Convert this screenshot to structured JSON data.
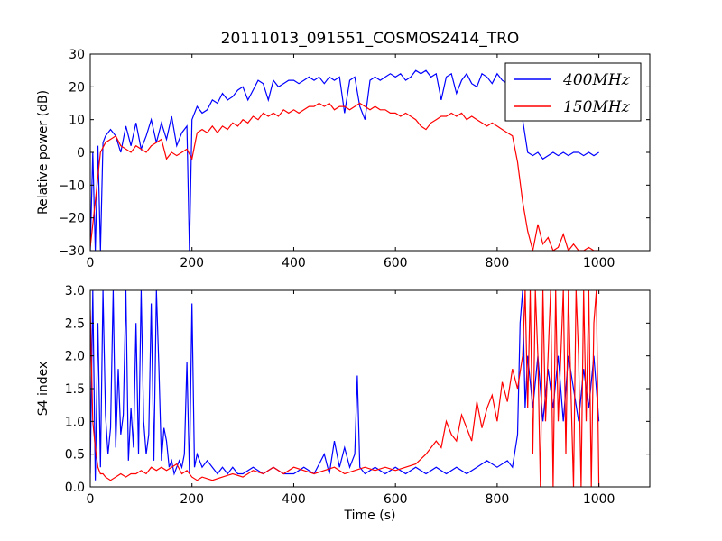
{
  "title": "20111013_091551_COSMOS2414_TRO",
  "colors": {
    "blue": "#0000ff",
    "red": "#ff0000"
  },
  "chart_data": [
    {
      "type": "line",
      "xlabel": "",
      "ylabel": "Relative power (dB)",
      "xlim": [
        0,
        1100
      ],
      "ylim": [
        -30,
        30
      ],
      "xticks": [
        0,
        200,
        400,
        600,
        800,
        1000
      ],
      "yticks": [
        -30,
        -20,
        -10,
        0,
        10,
        20,
        30
      ],
      "xtick_labels": [
        "0",
        "200",
        "400",
        "600",
        "800",
        "1000"
      ],
      "ytick_labels": [
        "−30",
        "−20",
        "−10",
        "0",
        "10",
        "20",
        "30"
      ],
      "legend": {
        "placement": "top-right",
        "entries": [
          "400MHz",
          "150MHz"
        ]
      },
      "series": [
        {
          "name": "400MHz",
          "color": "#0000ff",
          "x": [
            0,
            5,
            10,
            15,
            20,
            25,
            30,
            40,
            50,
            60,
            70,
            80,
            90,
            100,
            110,
            120,
            130,
            140,
            150,
            160,
            170,
            180,
            190,
            195,
            200,
            210,
            220,
            230,
            240,
            250,
            260,
            270,
            280,
            290,
            300,
            310,
            320,
            330,
            340,
            350,
            360,
            370,
            380,
            390,
            400,
            410,
            420,
            430,
            440,
            450,
            460,
            470,
            480,
            490,
            500,
            510,
            520,
            530,
            540,
            550,
            560,
            570,
            580,
            590,
            600,
            610,
            620,
            630,
            640,
            650,
            660,
            670,
            680,
            690,
            700,
            710,
            720,
            730,
            740,
            750,
            760,
            770,
            780,
            790,
            800,
            810,
            820,
            830,
            840,
            850,
            860,
            870,
            880,
            890,
            900,
            910,
            920,
            930,
            940,
            950,
            960,
            970,
            980,
            990,
            1000
          ],
          "y": [
            -30,
            0,
            -30,
            2,
            -30,
            3,
            5,
            7,
            5,
            0,
            8,
            2,
            9,
            1,
            5,
            10,
            3,
            9,
            4,
            11,
            2,
            6,
            8,
            -30,
            10,
            14,
            12,
            13,
            16,
            15,
            18,
            16,
            17,
            19,
            20,
            16,
            19,
            22,
            21,
            16,
            22,
            20,
            21,
            22,
            22,
            21,
            22,
            23,
            22,
            23,
            21,
            23,
            22,
            23,
            12,
            22,
            23,
            14,
            10,
            22,
            23,
            22,
            23,
            24,
            23,
            24,
            22,
            23,
            25,
            24,
            25,
            23,
            24,
            16,
            23,
            24,
            18,
            22,
            24,
            21,
            20,
            24,
            23,
            21,
            24,
            22,
            21,
            18,
            15,
            10,
            0,
            -1,
            0,
            -2,
            -1,
            0,
            -1,
            0,
            -1,
            0,
            0,
            -1,
            0,
            -1,
            0
          ]
        },
        {
          "name": "150MHz",
          "color": "#ff0000",
          "x": [
            0,
            10,
            20,
            30,
            40,
            50,
            60,
            70,
            80,
            90,
            100,
            110,
            120,
            130,
            140,
            150,
            160,
            170,
            180,
            190,
            200,
            210,
            220,
            230,
            240,
            250,
            260,
            270,
            280,
            290,
            300,
            310,
            320,
            330,
            340,
            350,
            360,
            370,
            380,
            390,
            400,
            410,
            420,
            430,
            440,
            450,
            460,
            470,
            480,
            490,
            500,
            510,
            520,
            530,
            540,
            550,
            560,
            570,
            580,
            590,
            600,
            610,
            620,
            630,
            640,
            650,
            660,
            670,
            680,
            690,
            700,
            710,
            720,
            730,
            740,
            750,
            760,
            770,
            780,
            790,
            800,
            810,
            820,
            830,
            840,
            850,
            860,
            870,
            880,
            890,
            900,
            910,
            920,
            930,
            940,
            950,
            960,
            970,
            980,
            990,
            1000
          ],
          "y": [
            -29,
            -15,
            0,
            3,
            4,
            5,
            2,
            1,
            0,
            2,
            1,
            0,
            2,
            3,
            4,
            -2,
            0,
            -1,
            0,
            1,
            -2,
            6,
            7,
            6,
            8,
            6,
            8,
            7,
            9,
            8,
            10,
            9,
            11,
            10,
            12,
            11,
            12,
            11,
            13,
            12,
            13,
            12,
            13,
            14,
            14,
            15,
            14,
            15,
            13,
            14,
            14,
            13,
            14,
            15,
            14,
            13,
            14,
            13,
            13,
            12,
            12,
            11,
            12,
            11,
            10,
            8,
            7,
            9,
            10,
            11,
            11,
            12,
            11,
            12,
            10,
            11,
            10,
            9,
            8,
            9,
            8,
            7,
            6,
            5,
            -3,
            -15,
            -24,
            -30,
            -22,
            -28,
            -26,
            -30,
            -29,
            -25,
            -30,
            -28,
            -30,
            -30,
            -29,
            -30,
            -30
          ]
        }
      ]
    },
    {
      "type": "line",
      "xlabel": "Time (s)",
      "ylabel": "S4 index",
      "xlim": [
        0,
        1100
      ],
      "ylim": [
        0,
        3
      ],
      "xticks": [
        0,
        200,
        400,
        600,
        800,
        1000
      ],
      "yticks": [
        0,
        0.5,
        1,
        1.5,
        2,
        2.5,
        3
      ],
      "xtick_labels": [
        "0",
        "200",
        "400",
        "600",
        "800",
        "1000"
      ],
      "ytick_labels": [
        "0.0",
        "0.5",
        "1.0",
        "1.5",
        "2.0",
        "2.5",
        "3.0"
      ],
      "series": [
        {
          "name": "400MHz",
          "color": "#0000ff",
          "x": [
            0,
            5,
            10,
            15,
            20,
            25,
            30,
            35,
            40,
            45,
            50,
            55,
            60,
            65,
            70,
            75,
            80,
            85,
            90,
            95,
            100,
            105,
            110,
            115,
            120,
            125,
            130,
            135,
            140,
            145,
            150,
            155,
            160,
            165,
            170,
            175,
            180,
            185,
            190,
            195,
            200,
            205,
            210,
            220,
            230,
            240,
            250,
            260,
            270,
            280,
            290,
            300,
            320,
            340,
            360,
            380,
            400,
            420,
            440,
            460,
            470,
            480,
            490,
            500,
            510,
            520,
            525,
            530,
            540,
            560,
            580,
            600,
            620,
            640,
            660,
            680,
            700,
            720,
            740,
            760,
            780,
            800,
            820,
            830,
            840,
            845,
            850,
            855,
            860,
            870,
            880,
            890,
            900,
            910,
            920,
            930,
            940,
            950,
            960,
            970,
            980,
            990,
            1000
          ],
          "y": [
            0.2,
            3.0,
            0.1,
            2.5,
            0.3,
            3.0,
            1.1,
            0.5,
            0.9,
            3.0,
            0.6,
            1.8,
            0.8,
            1.1,
            3.0,
            0.4,
            1.2,
            0.6,
            2.5,
            0.5,
            3.0,
            1.0,
            0.5,
            0.8,
            2.8,
            0.4,
            3.0,
            1.8,
            0.4,
            0.9,
            0.7,
            0.3,
            0.4,
            0.2,
            0.3,
            0.4,
            0.3,
            0.5,
            1.9,
            0.2,
            2.8,
            0.3,
            0.5,
            0.3,
            0.4,
            0.3,
            0.2,
            0.3,
            0.2,
            0.3,
            0.2,
            0.2,
            0.3,
            0.2,
            0.3,
            0.2,
            0.2,
            0.3,
            0.2,
            0.5,
            0.2,
            0.7,
            0.3,
            0.6,
            0.3,
            0.5,
            1.7,
            0.3,
            0.2,
            0.3,
            0.2,
            0.3,
            0.2,
            0.3,
            0.2,
            0.3,
            0.2,
            0.3,
            0.2,
            0.3,
            0.4,
            0.3,
            0.4,
            0.3,
            0.8,
            2.5,
            3.0,
            1.2,
            2.0,
            1.2,
            2.0,
            1.0,
            1.8,
            1.2,
            2.0,
            1.0,
            2.0,
            1.5,
            1.0,
            1.8,
            1.2,
            2.0,
            1.0
          ]
        },
        {
          "name": "150MHz",
          "color": "#ff0000",
          "x": [
            0,
            5,
            10,
            15,
            20,
            25,
            30,
            40,
            50,
            60,
            70,
            80,
            90,
            100,
            110,
            120,
            130,
            140,
            150,
            160,
            170,
            180,
            190,
            200,
            210,
            220,
            240,
            260,
            280,
            300,
            320,
            340,
            360,
            380,
            400,
            420,
            440,
            460,
            480,
            500,
            520,
            540,
            560,
            580,
            600,
            620,
            640,
            660,
            680,
            690,
            700,
            710,
            720,
            730,
            740,
            750,
            760,
            770,
            780,
            790,
            800,
            810,
            820,
            830,
            840,
            850,
            855,
            860,
            865,
            870,
            875,
            880,
            885,
            890,
            895,
            900,
            905,
            910,
            915,
            920,
            925,
            930,
            935,
            940,
            945,
            950,
            955,
            960,
            965,
            970,
            975,
            980,
            985,
            990,
            995,
            1000
          ],
          "y": [
            2.7,
            1.0,
            0.6,
            0.3,
            0.2,
            0.2,
            0.15,
            0.1,
            0.15,
            0.2,
            0.15,
            0.2,
            0.2,
            0.25,
            0.2,
            0.3,
            0.25,
            0.3,
            0.25,
            0.3,
            0.35,
            0.2,
            0.25,
            0.15,
            0.1,
            0.15,
            0.1,
            0.15,
            0.2,
            0.15,
            0.25,
            0.2,
            0.3,
            0.2,
            0.3,
            0.25,
            0.2,
            0.25,
            0.3,
            0.2,
            0.25,
            0.3,
            0.25,
            0.3,
            0.25,
            0.3,
            0.35,
            0.5,
            0.7,
            0.6,
            1.0,
            0.8,
            0.7,
            1.1,
            0.9,
            0.7,
            1.3,
            0.9,
            1.2,
            1.4,
            1.0,
            1.6,
            1.3,
            1.8,
            1.5,
            2.0,
            3.0,
            1.2,
            3.0,
            0.5,
            3.0,
            2.0,
            0.0,
            3.0,
            1.0,
            2.0,
            3.0,
            0.0,
            3.0,
            1.0,
            2.0,
            3.0,
            0.5,
            3.0,
            1.5,
            0.0,
            3.0,
            2.0,
            0.0,
            3.0,
            1.0,
            3.0,
            0.0,
            2.5,
            3.0,
            0.0
          ]
        }
      ]
    }
  ]
}
